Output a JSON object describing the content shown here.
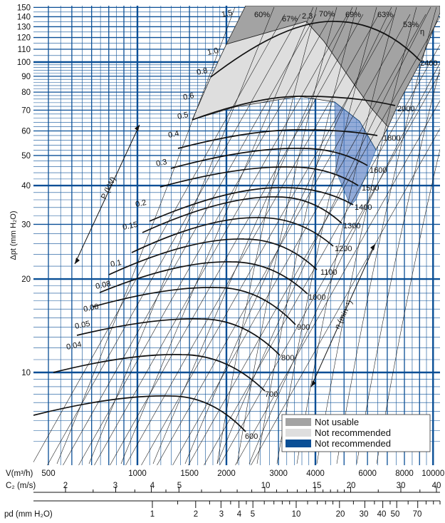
{
  "chart_data": {
    "type": "line",
    "title": "",
    "ylabel": "Δpt (mm H₂O)",
    "x_axes": [
      {
        "label": "V(m³/h)",
        "scale": "log",
        "ticks": [
          "500",
          "1000",
          "1500",
          "2000",
          "3000",
          "4000",
          "6000",
          "8000",
          "10000"
        ],
        "values": [
          500,
          1000,
          1500,
          2000,
          3000,
          4000,
          6000,
          8000,
          10000
        ]
      },
      {
        "label": "C₂ (m/s)",
        "scale": "log",
        "ticks": [
          "2",
          "3",
          "4",
          "5",
          "10",
          "15",
          "20",
          "30",
          "40"
        ],
        "values": [
          2,
          3,
          4,
          5,
          10,
          15,
          20,
          30,
          40
        ]
      },
      {
        "label": "pd (mm H₂O)",
        "scale": "log",
        "ticks": [
          "1",
          "2",
          "3",
          "4",
          "5",
          "10",
          "20",
          "30",
          "40",
          "50",
          "70"
        ],
        "values": [
          1,
          2,
          3,
          4,
          5,
          10,
          20,
          30,
          40,
          50,
          70
        ]
      }
    ],
    "y_axis": {
      "scale": "log",
      "ylim": [
        6,
        150
      ],
      "ticks": [
        "10",
        "20",
        "30",
        "40",
        "50",
        "60",
        "70",
        "80",
        "90",
        "100",
        "110",
        "120",
        "130",
        "140",
        "150"
      ],
      "values": [
        10,
        20,
        30,
        40,
        50,
        60,
        70,
        80,
        90,
        100,
        110,
        120,
        130,
        140,
        150
      ]
    },
    "speed_axis_label": "n (min⁻¹)",
    "speed_curves": [
      {
        "rpm": "600",
        "label": "600"
      },
      {
        "rpm": "700",
        "label": "700"
      },
      {
        "rpm": "800",
        "label": "800"
      },
      {
        "rpm": "900",
        "label": "900"
      },
      {
        "rpm": "1000",
        "label": "1000"
      },
      {
        "rpm": "1100",
        "label": "1100"
      },
      {
        "rpm": "1200",
        "label": "1200"
      },
      {
        "rpm": "1300",
        "label": "1300"
      },
      {
        "rpm": "1400",
        "label": "1400"
      },
      {
        "rpm": "1500",
        "label": "1500"
      },
      {
        "rpm": "1600",
        "label": "1600"
      },
      {
        "rpm": "1800",
        "label": "1800"
      },
      {
        "rpm": "2000",
        "label": "2000"
      },
      {
        "rpm": "2400",
        "label": "2400"
      }
    ],
    "power_axis_label": "P (kW)",
    "power_labels": [
      "0.04",
      "0.05",
      "0.06",
      "0.08",
      "0.1",
      "0.15",
      "0.2",
      "0.3",
      "0.4",
      "0.5",
      "0.6",
      "0.8",
      "1.0",
      "1.5"
    ],
    "efficiency_symbol": "η",
    "efficiency_labels": [
      "60%",
      "67%",
      "2.3",
      "70%",
      "69%",
      "63%",
      "53%"
    ],
    "legend": [
      {
        "label": "Not usable",
        "color": "#a3a3a3"
      },
      {
        "label": "Not recommended",
        "color": "#dedede"
      },
      {
        "label": "Not recommended",
        "color": "#0a4f96"
      }
    ],
    "grid": true
  }
}
